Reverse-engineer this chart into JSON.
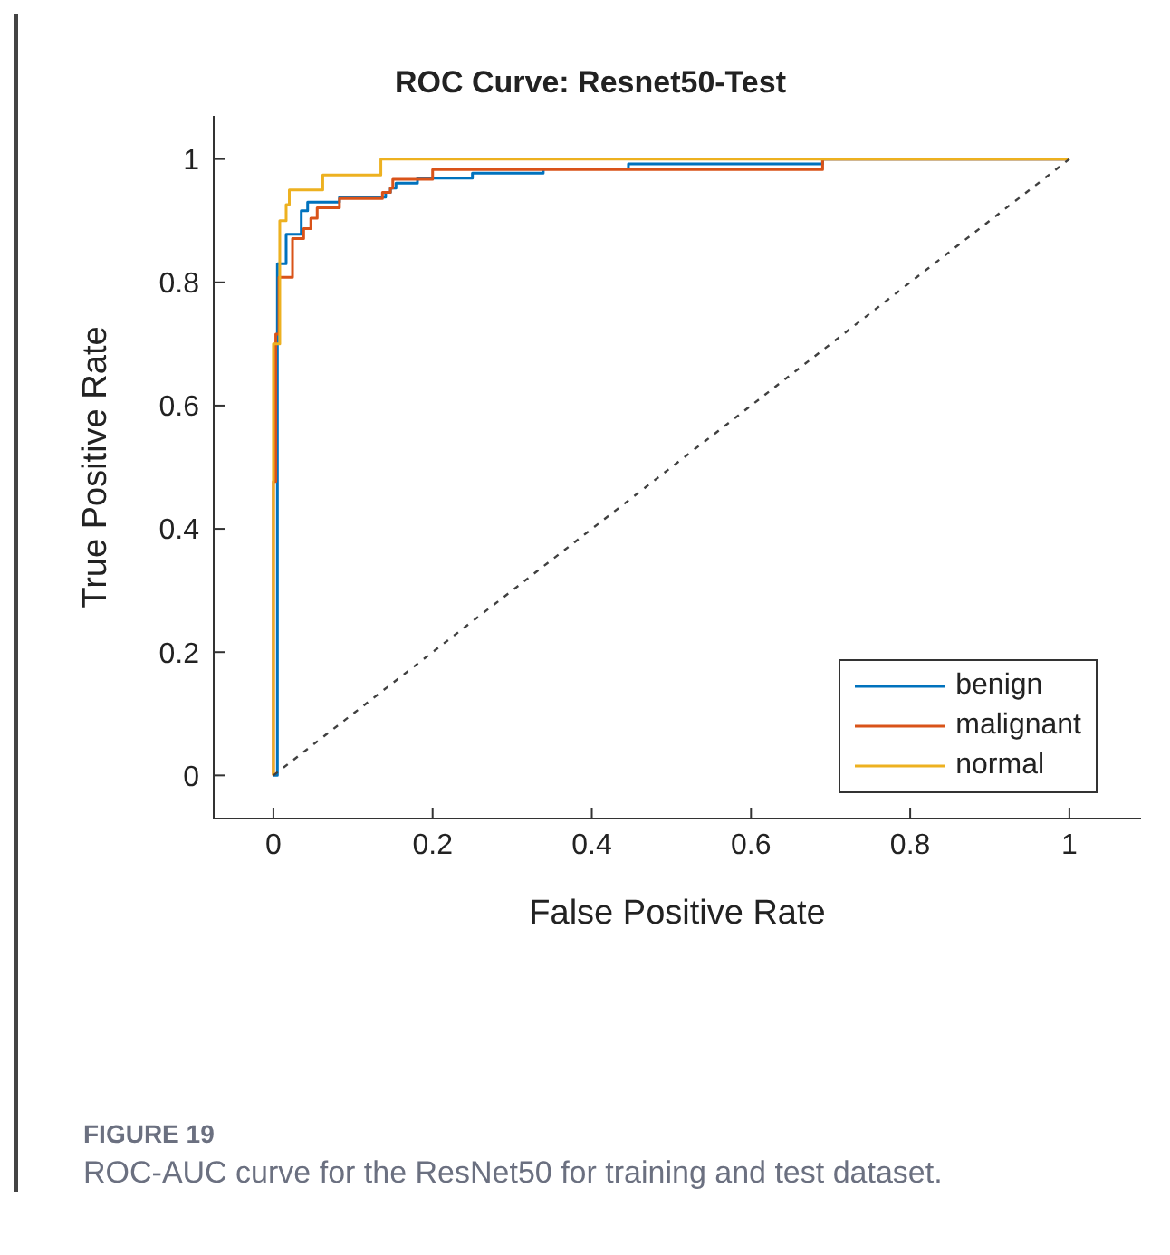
{
  "chart_data": {
    "type": "step",
    "title": "ROC Curve: Resnet50-Test",
    "xlabel": "False Positive Rate",
    "ylabel": "True Positive Rate",
    "xlim": [
      -0.075,
      1.09
    ],
    "ylim": [
      -0.07,
      1.07
    ],
    "xticks": [
      0,
      0.2,
      0.4,
      0.6,
      0.8,
      1
    ],
    "yticks": [
      0,
      0.2,
      0.4,
      0.6,
      0.8,
      1
    ],
    "grid": false,
    "legend": "bottom right",
    "marker": "none",
    "series": [
      {
        "name": "benign",
        "color": "#0072bd",
        "x": [
          0,
          0.005,
          0.005,
          0.016,
          0.035,
          0.043,
          0.083,
          0.141,
          0.147,
          0.154,
          0.181,
          0.25,
          0.339,
          0.446,
          0.69,
          0.69,
          1
        ],
        "values": [
          0,
          0.36,
          0.83,
          0.878,
          0.916,
          0.93,
          0.938,
          0.946,
          0.953,
          0.961,
          0.969,
          0.977,
          0.984,
          0.992,
          0.992,
          1,
          1
        ]
      },
      {
        "name": "malignant",
        "color": "#d95319",
        "x": [
          0,
          0,
          0,
          0.003,
          0.007,
          0.024,
          0.038,
          0.047,
          0.055,
          0.083,
          0.137,
          0.147,
          0.15,
          0.2,
          0.69,
          0.69,
          1
        ],
        "values": [
          0,
          0.276,
          0.477,
          0.716,
          0.808,
          0.871,
          0.887,
          0.904,
          0.921,
          0.936,
          0.946,
          0.953,
          0.967,
          0.983,
          0.983,
          1,
          1
        ]
      },
      {
        "name": "normal",
        "color": "#edb120",
        "x": [
          0,
          0,
          0.008,
          0.016,
          0.02,
          0.062,
          0.135,
          1
        ],
        "values": [
          0,
          0.7,
          0.9,
          0.926,
          0.95,
          0.974,
          1,
          1
        ]
      },
      {
        "type": "line",
        "color": "#404040",
        "line_style": "dashed",
        "x": [
          0,
          1
        ],
        "values": [
          0,
          1
        ]
      }
    ],
    "annotations": [
      "FIGURE 19",
      "ROC-AUC curve for the ResNet50 for training and test dataset."
    ]
  }
}
